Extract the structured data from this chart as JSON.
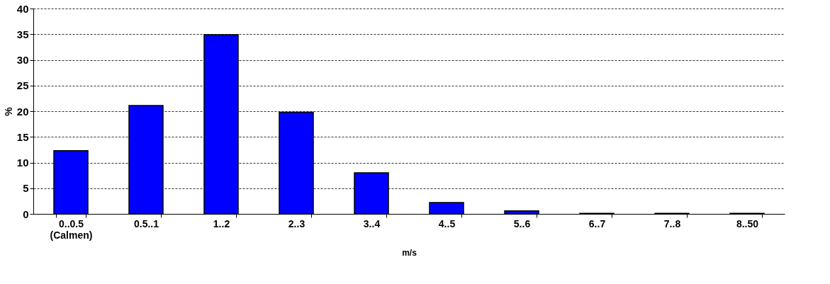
{
  "chart_data": {
    "type": "bar",
    "xlabel": "m/s",
    "ylabel": "%",
    "categories": [
      "0..0.5\n(Calmen)",
      "0.5..1",
      "1..2",
      "2..3",
      "3..4",
      "4..5",
      "5..6",
      "6..7",
      "7..8",
      "8..50"
    ],
    "values": [
      12.3,
      21.1,
      34.9,
      19.8,
      8.0,
      2.2,
      0.6,
      0.1,
      0.1,
      0.1
    ],
    "color": "#0000ff",
    "ylim": [
      0,
      40
    ],
    "yticks": [
      0,
      5,
      10,
      15,
      20,
      25,
      30,
      35,
      40
    ],
    "grid": "y"
  }
}
